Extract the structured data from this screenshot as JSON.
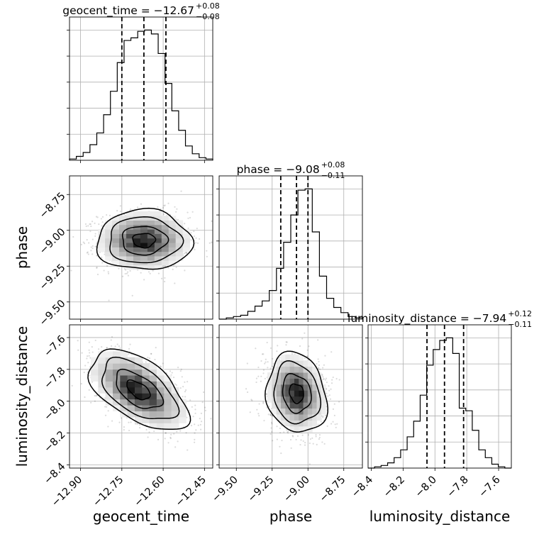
{
  "chart_data": {
    "type": "corner",
    "grid": true,
    "parameters": [
      {
        "name": "geocent_time",
        "xlabel": "geocent_time",
        "title_main": "geocent_time = −12.67",
        "title_plus": "+0.08",
        "title_minus": "−0.08",
        "range": [
          -12.94,
          -12.42
        ],
        "ticks": [
          -12.9,
          -12.75,
          -12.6,
          -12.45
        ],
        "tick_labels": [
          "−12.90",
          "−12.75",
          "−12.60",
          "−12.45"
        ],
        "quantiles": [
          -12.75,
          -12.67,
          -12.59
        ],
        "hist_counts": [
          0.01,
          0.03,
          0.06,
          0.12,
          0.21,
          0.35,
          0.53,
          0.75,
          0.92,
          0.94,
          0.99,
          1.0,
          0.97,
          0.82,
          0.59,
          0.38,
          0.23,
          0.11,
          0.05,
          0.02,
          0.01
        ]
      },
      {
        "name": "phase",
        "xlabel": "phase",
        "ylabel": "phase",
        "title_main": "phase = −9.08",
        "title_plus": "+0.08",
        "title_minus": "−0.11",
        "range": [
          -9.62,
          -8.62
        ],
        "ticks": [
          -9.5,
          -9.25,
          -9.0,
          -8.75
        ],
        "tick_labels": [
          "−9.50",
          "−9.25",
          "−9.00",
          "−8.75"
        ],
        "quantiles": [
          -9.19,
          -9.08,
          -9.0
        ],
        "hist_counts": [
          0.0,
          0.01,
          0.02,
          0.03,
          0.06,
          0.1,
          0.14,
          0.22,
          0.39,
          0.59,
          0.8,
          0.99,
          1.0,
          0.67,
          0.33,
          0.16,
          0.09,
          0.05,
          0.02,
          0.01
        ]
      },
      {
        "name": "luminosity_distance",
        "xlabel": "luminosity_distance",
        "ylabel": "luminosity_distance",
        "title_main": "luminosity_distance = −7.94",
        "title_plus": "+0.12",
        "title_minus": "−0.11",
        "range": [
          -8.42,
          -7.52
        ],
        "ticks": [
          -8.4,
          -8.2,
          -8.0,
          -7.8,
          -7.6
        ],
        "tick_labels": [
          "−8.4",
          "−8.2",
          "−8.0",
          "−7.8",
          "−7.6"
        ],
        "quantiles": [
          -8.05,
          -7.94,
          -7.82
        ],
        "hist_counts": [
          0.0,
          0.01,
          0.02,
          0.04,
          0.08,
          0.14,
          0.24,
          0.36,
          0.56,
          0.79,
          0.91,
          0.98,
          1.0,
          0.88,
          0.46,
          0.44,
          0.29,
          0.14,
          0.08,
          0.03,
          0.01,
          0.0
        ]
      }
    ],
    "pairs": [
      {
        "x": "geocent_time",
        "y": "phase",
        "center": [
          -12.67,
          -9.07
        ],
        "sigma": [
          0.082,
          0.1
        ],
        "corr": 0.0
      },
      {
        "x": "geocent_time",
        "y": "luminosity_distance",
        "center": [
          -12.69,
          -7.93
        ],
        "sigma": [
          0.085,
          0.12
        ],
        "corr": -0.55
      },
      {
        "x": "phase",
        "y": "luminosity_distance",
        "center": [
          -9.08,
          -7.95
        ],
        "sigma": [
          0.1,
          0.12
        ],
        "corr": -0.15
      }
    ]
  }
}
